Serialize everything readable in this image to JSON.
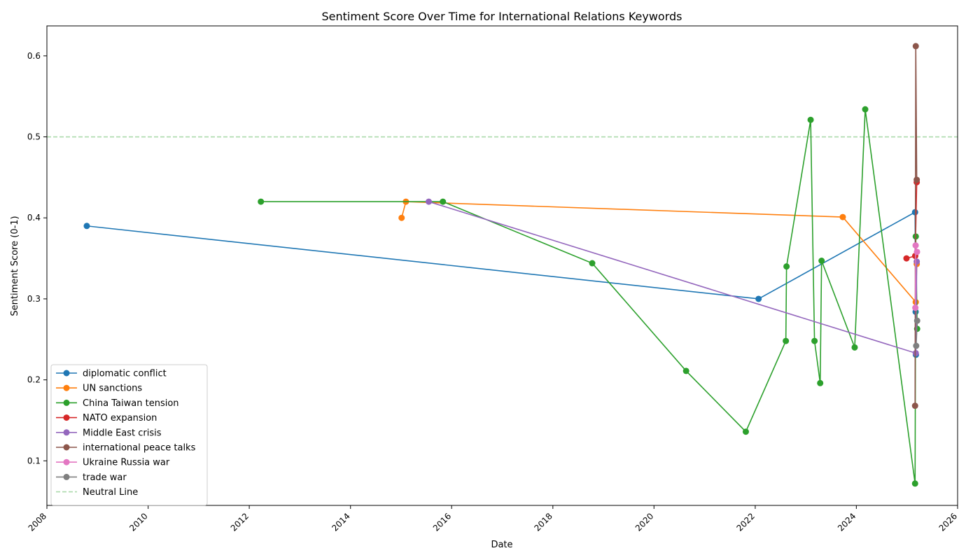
{
  "chart_data": {
    "type": "line",
    "title": "Sentiment Score Over Time for International Relations Keywords",
    "xlabel": "Date",
    "ylabel": "Sentiment Score (0-1)",
    "xlim": [
      "2008-01-01",
      "2026-01-01"
    ],
    "ylim": [
      0.045,
      0.637
    ],
    "x_ticks": [
      "2008",
      "2010",
      "2012",
      "2014",
      "2016",
      "2018",
      "2020",
      "2022",
      "2024",
      "2026"
    ],
    "y_ticks": [
      "0.1",
      "0.2",
      "0.3",
      "0.4",
      "0.5",
      "0.6"
    ],
    "legend_position": "lower-left",
    "grid": false,
    "reference_line": {
      "name": "Neutral Line",
      "y": 0.5,
      "color": "#2ca02c",
      "style": "dashed"
    },
    "series": [
      {
        "name": "diplomatic conflict",
        "color": "#1f77b4",
        "points": [
          {
            "x": "2008-10-15",
            "y": 0.39
          },
          {
            "x": "2022-01-25",
            "y": 0.3
          },
          {
            "x": "2025-02-28",
            "y": 0.407
          },
          {
            "x": "2025-03-04",
            "y": 0.284
          },
          {
            "x": "2025-03-06",
            "y": 0.231
          }
        ]
      },
      {
        "name": "UN sanctions",
        "color": "#ff7f0e",
        "points": [
          {
            "x": "2015-01-05",
            "y": 0.4
          },
          {
            "x": "2015-02-05",
            "y": 0.42
          },
          {
            "x": "2023-09-25",
            "y": 0.401
          },
          {
            "x": "2025-03-05",
            "y": 0.296
          },
          {
            "x": "2025-03-12",
            "y": 0.343
          }
        ]
      },
      {
        "name": "China Taiwan tension",
        "color": "#2ca02c",
        "points": [
          {
            "x": "2012-03-25",
            "y": 0.42
          },
          {
            "x": "2015-10-30",
            "y": 0.42
          },
          {
            "x": "2018-10-12",
            "y": 0.344
          },
          {
            "x": "2020-08-20",
            "y": 0.211
          },
          {
            "x": "2021-10-25",
            "y": 0.136
          },
          {
            "x": "2022-08-10",
            "y": 0.248
          },
          {
            "x": "2022-08-15",
            "y": 0.34
          },
          {
            "x": "2023-02-05",
            "y": 0.521
          },
          {
            "x": "2023-03-05",
            "y": 0.248
          },
          {
            "x": "2023-04-15",
            "y": 0.196
          },
          {
            "x": "2023-04-25",
            "y": 0.347
          },
          {
            "x": "2023-12-20",
            "y": 0.24
          },
          {
            "x": "2024-03-05",
            "y": 0.534
          },
          {
            "x": "2025-02-28",
            "y": 0.072
          },
          {
            "x": "2025-03-05",
            "y": 0.377
          },
          {
            "x": "2025-03-15",
            "y": 0.263
          }
        ]
      },
      {
        "name": "NATO expansion",
        "color": "#d62728",
        "points": [
          {
            "x": "2024-12-28",
            "y": 0.35
          },
          {
            "x": "2025-03-01",
            "y": 0.353
          },
          {
            "x": "2025-03-12",
            "y": 0.444
          }
        ]
      },
      {
        "name": "Middle East crisis",
        "color": "#9467bd",
        "points": [
          {
            "x": "2015-07-20",
            "y": 0.42
          },
          {
            "x": "2025-03-05",
            "y": 0.233
          },
          {
            "x": "2025-03-12",
            "y": 0.346
          }
        ]
      },
      {
        "name": "international peace talks",
        "color": "#8c564b",
        "points": [
          {
            "x": "2025-02-28",
            "y": 0.168
          },
          {
            "x": "2025-03-05",
            "y": 0.612
          },
          {
            "x": "2025-03-12",
            "y": 0.447
          }
        ]
      },
      {
        "name": "Ukraine Russia war",
        "color": "#e377c2",
        "points": [
          {
            "x": "2025-03-02",
            "y": 0.289
          },
          {
            "x": "2025-03-04",
            "y": 0.366
          },
          {
            "x": "2025-03-14",
            "y": 0.358
          }
        ]
      },
      {
        "name": "trade war",
        "color": "#7f7f7f",
        "points": [
          {
            "x": "2025-03-08",
            "y": 0.242
          },
          {
            "x": "2025-03-15",
            "y": 0.273
          }
        ]
      }
    ]
  }
}
